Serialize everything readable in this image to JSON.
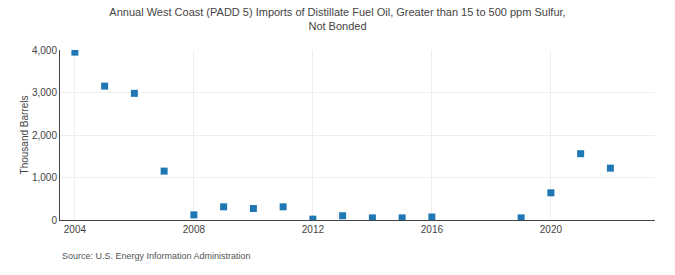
{
  "chart_data": {
    "type": "scatter",
    "title": "Annual West Coast (PADD 5) Imports of Distillate Fuel Oil, Greater than 15 to 500 ppm Sulfur,\nNot Bonded",
    "ylabel": "Thousand Barrels",
    "annotations": [
      "Source: U.S. Energy Information Administration"
    ],
    "x": [
      2004,
      2005,
      2006,
      2007,
      2008,
      2009,
      2010,
      2011,
      2012,
      2013,
      2014,
      2015,
      2016,
      2019,
      2020,
      2021,
      2022
    ],
    "values": [
      3950,
      3150,
      2980,
      1150,
      120,
      310,
      270,
      310,
      20,
      100,
      50,
      50,
      70,
      50,
      640,
      1560,
      1220
    ],
    "marker": "square",
    "xlim": [
      2003.5,
      2023.5
    ],
    "xticks": [
      2004,
      2008,
      2012,
      2016,
      2020
    ],
    "ylim": [
      0,
      4000
    ],
    "yticks": [
      0,
      {
        "value": 1000,
        "label": "1,000"
      },
      {
        "value": 2000,
        "label": "2,000"
      },
      {
        "value": 3000,
        "label": "3,000"
      },
      {
        "value": 4000,
        "label": "4,000"
      }
    ],
    "grid": true
  }
}
